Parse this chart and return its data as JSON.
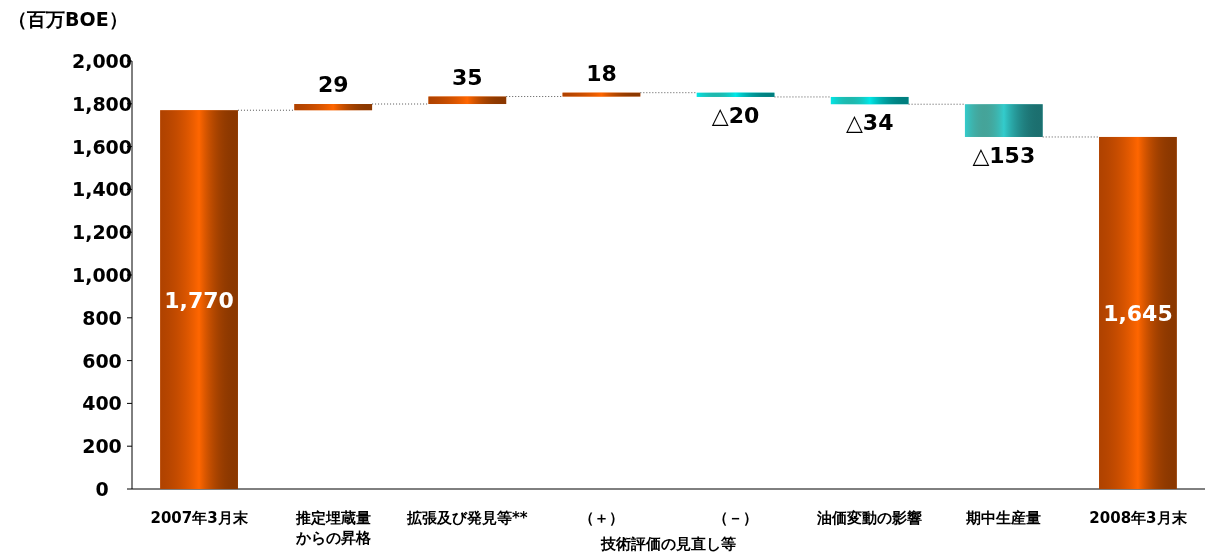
{
  "chart_data": {
    "type": "bar",
    "ylabel": "（百万BOE）",
    "categories": [
      "2007年3月末",
      "推定埋蔵量からの昇格",
      "拡張及び発見等**",
      "（＋）",
      "（－）",
      "油価変動の影響",
      "期中生産量",
      "2008年3月末"
    ],
    "values": [
      1770,
      29,
      35,
      18,
      -20,
      -34,
      -153,
      1645
    ],
    "base": [
      0,
      1770,
      1799,
      1834,
      1852,
      1832,
      1798,
      0
    ],
    "colors": [
      "#ff6600",
      "#ff6600",
      "#ff6600",
      "#ff6600",
      "#00e8e8",
      "#00e8e8",
      "#33cccc",
      "#ff6600"
    ],
    "value_labels": [
      "1,770",
      "29",
      "35",
      "18",
      "△20",
      "△34",
      "△153",
      "1,645"
    ],
    "annotations": [
      "技術評価の見直し等"
    ],
    "ylim": [
      0,
      2000
    ],
    "yticks": [
      {
        "value": 0,
        "label": "0"
      },
      {
        "value": 200,
        "label": "200"
      },
      {
        "value": 400,
        "label": "400"
      },
      {
        "value": 600,
        "label": "600"
      },
      {
        "value": 800,
        "label": "800"
      },
      {
        "value": 1000,
        "label": "1,000"
      },
      {
        "value": 1200,
        "label": "1,200"
      },
      {
        "value": 1400,
        "label": "1,400"
      },
      {
        "value": 1600,
        "label": "1,600"
      },
      {
        "value": 1800,
        "label": "1,800"
      },
      {
        "value": 2000,
        "label": "2,000"
      }
    ],
    "grid": false
  }
}
